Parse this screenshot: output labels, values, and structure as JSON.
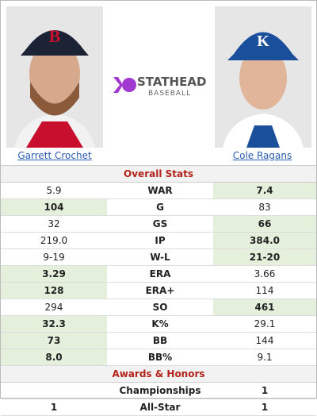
{
  "players": {
    "left": {
      "name": "Garrett Crochet"
    },
    "right": {
      "name": "Cole Ragans"
    }
  },
  "logo": {
    "brand": "STATHEAD",
    "sub": "BASEBALL"
  },
  "sections": [
    {
      "title": "Overall Stats",
      "rows": [
        {
          "stat": "WAR",
          "left": "5.9",
          "right": "7.4",
          "better": "right"
        },
        {
          "stat": "G",
          "left": "104",
          "right": "83",
          "better": "left"
        },
        {
          "stat": "GS",
          "left": "32",
          "right": "66",
          "better": "right"
        },
        {
          "stat": "IP",
          "left": "219.0",
          "right": "384.0",
          "better": "right"
        },
        {
          "stat": "W-L",
          "left": "9-19",
          "right": "21-20",
          "better": "right"
        },
        {
          "stat": "ERA",
          "left": "3.29",
          "right": "3.66",
          "better": "left"
        },
        {
          "stat": "ERA+",
          "left": "128",
          "right": "114",
          "better": "left"
        },
        {
          "stat": "SO",
          "left": "294",
          "right": "461",
          "better": "right"
        },
        {
          "stat": "K%",
          "left": "32.3",
          "right": "29.1",
          "better": "left"
        },
        {
          "stat": "BB",
          "left": "73",
          "right": "144",
          "better": "left"
        },
        {
          "stat": "BB%",
          "left": "8.0",
          "right": "9.1",
          "better": "left"
        }
      ]
    },
    {
      "title": "Awards & Honors",
      "rows": [
        {
          "stat": "Championships",
          "left": null,
          "right": "1",
          "bold": [
            "right"
          ]
        },
        {
          "stat": "All-Star",
          "left": "1",
          "right": "1",
          "bold": [
            "left",
            "right"
          ]
        }
      ]
    }
  ]
}
